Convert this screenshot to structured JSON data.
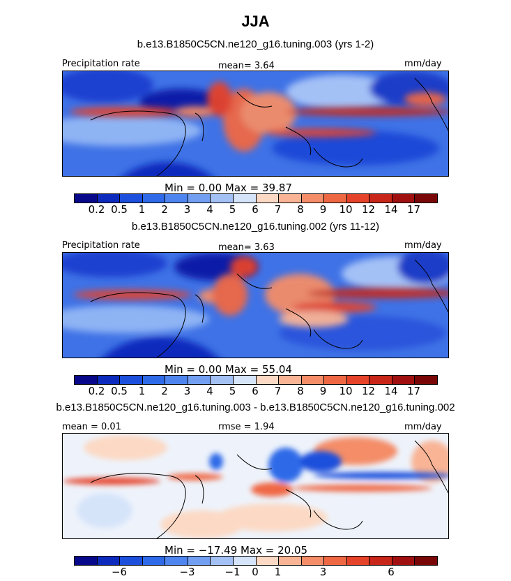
{
  "title": "JJA",
  "panels": [
    {
      "subtitle": "b.e13.B1850C5CN.ne120_g16.tuning.003 (yrs 1-2)",
      "left_label": "Precipitation rate",
      "center_label": "mean=   3.64",
      "right_label": "mm/day",
      "minmax": "Min =    0.00  Max =   39.87",
      "colorbar_labels": [
        "0.2",
        "0.5",
        "1",
        "2",
        "3",
        "4",
        "5",
        "6",
        "7",
        "8",
        "9",
        "10",
        "12",
        "14",
        "17"
      ]
    },
    {
      "subtitle": "b.e13.B1850C5CN.ne120_g16.tuning.002 (yrs 11-12)",
      "left_label": "Precipitation rate",
      "center_label": "mean=   3.63",
      "right_label": "mm/day",
      "minmax": "Min =    0.00  Max =   55.04",
      "colorbar_labels": [
        "0.2",
        "0.5",
        "1",
        "2",
        "3",
        "4",
        "5",
        "6",
        "7",
        "8",
        "9",
        "10",
        "12",
        "14",
        "17"
      ]
    },
    {
      "subtitle": "b.e13.B1850C5CN.ne120_g16.tuning.003 - b.e13.B1850C5CN.ne120_g16.tuning.002",
      "left_label": "mean =   0.01",
      "center_label": "rmse =   1.94",
      "right_label": "mm/day",
      "minmax": "Min = −17.49  Max =   20.05",
      "colorbar_labels": [
        "−6",
        "−3",
        "−1",
        "0",
        "1",
        "3",
        "6"
      ]
    }
  ],
  "colors": {
    "precip": [
      "#08088a",
      "#0c2bbd",
      "#1c4fdc",
      "#2f6ae8",
      "#4f85ee",
      "#729ff2",
      "#a4c1f6",
      "#d6e4fa",
      "#fcd9c4",
      "#f9b495",
      "#f48d68",
      "#ef6844",
      "#e5432a",
      "#c82618",
      "#a01010",
      "#7a0707"
    ],
    "diff": [
      "#08088a",
      "#0c2bbd",
      "#1c4fdc",
      "#2f6ae8",
      "#4f85ee",
      "#729ff2",
      "#a4c1f6",
      "#d6e4fa",
      "#fcd9c4",
      "#f9b495",
      "#f48d68",
      "#ef6844",
      "#e5432a",
      "#c82618",
      "#a01010",
      "#7a0707"
    ]
  }
}
